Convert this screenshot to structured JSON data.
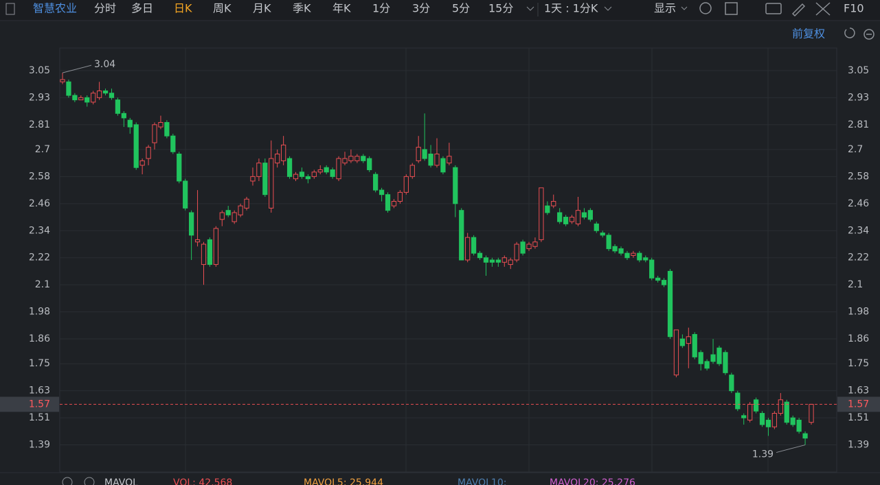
{
  "toolbar": {
    "stock": "智慧农业",
    "tabs": [
      "分时",
      "多日",
      "日K",
      "周K",
      "月K",
      "季K",
      "年K",
      "1分",
      "3分",
      "5分",
      "15分"
    ],
    "active_tab": "日K",
    "period": "1天 : 1分K",
    "display": "显示",
    "f10": "F10"
  },
  "adjust": "前复权",
  "chart_data": {
    "type": "candlestick",
    "ylim": [
      1.27,
      3.15
    ],
    "yticks": [
      3.05,
      2.93,
      2.81,
      2.7,
      2.58,
      2.46,
      2.34,
      2.22,
      2.1,
      1.98,
      1.86,
      1.75,
      1.63,
      1.51,
      1.39
    ],
    "grid": true,
    "up_color": "#ec4f53",
    "down_color": "#21c45e",
    "open": [
      3.0,
      3.0,
      2.94,
      2.92,
      2.93,
      2.91,
      2.93,
      2.96,
      2.95,
      2.92,
      2.86,
      2.83,
      2.81,
      2.63,
      2.66,
      2.73,
      2.8,
      2.82,
      2.76,
      2.68,
      2.56,
      2.42,
      2.29,
      2.19,
      2.3,
      2.19,
      2.39,
      2.43,
      2.38,
      2.41,
      2.44,
      2.56,
      2.58,
      2.64,
      2.44,
      2.64,
      2.65,
      2.66,
      2.57,
      2.6,
      2.58,
      2.58,
      2.6,
      2.62,
      2.61,
      2.57,
      2.64,
      2.65,
      2.65,
      2.67,
      2.66,
      2.59,
      2.52,
      2.5,
      2.45,
      2.47,
      2.51,
      2.58,
      2.65,
      2.7,
      2.68,
      2.63,
      2.66,
      2.64,
      2.62,
      2.43,
      2.21,
      2.31,
      2.24,
      2.22,
      2.21,
      2.21,
      2.2,
      2.19,
      2.21,
      2.29,
      2.26,
      2.27,
      2.3,
      2.45,
      2.45,
      2.42,
      2.4,
      2.38,
      2.37,
      2.42,
      2.43,
      2.37,
      2.33,
      2.32,
      2.27,
      2.26,
      2.24,
      2.23,
      2.24,
      2.22,
      2.21,
      2.13,
      2.12,
      2.16,
      1.7,
      1.86,
      1.84,
      1.88,
      1.8,
      1.76,
      1.79,
      1.82,
      1.8,
      1.7,
      1.62,
      1.52,
      1.5,
      1.59,
      1.53,
      1.5,
      1.47,
      1.53,
      1.58,
      1.51,
      1.5,
      1.44,
      1.49
    ],
    "high": [
      3.04,
      3.01,
      2.95,
      2.94,
      2.94,
      2.96,
      3.0,
      2.97,
      2.97,
      2.93,
      2.87,
      2.84,
      2.82,
      2.66,
      2.72,
      2.82,
      2.85,
      2.83,
      2.77,
      2.69,
      2.57,
      2.43,
      2.52,
      2.29,
      2.31,
      2.36,
      2.43,
      2.45,
      2.43,
      2.46,
      2.49,
      2.62,
      2.66,
      2.66,
      2.74,
      2.7,
      2.76,
      2.67,
      2.6,
      2.62,
      2.59,
      2.61,
      2.63,
      2.63,
      2.62,
      2.67,
      2.69,
      2.7,
      2.68,
      2.68,
      2.67,
      2.6,
      2.53,
      2.51,
      2.48,
      2.52,
      2.59,
      2.64,
      2.76,
      2.86,
      2.72,
      2.75,
      2.67,
      2.73,
      2.63,
      2.44,
      2.33,
      2.32,
      2.25,
      2.23,
      2.22,
      2.22,
      2.23,
      2.22,
      2.29,
      2.3,
      2.29,
      2.31,
      2.53,
      2.47,
      2.5,
      2.44,
      2.41,
      2.41,
      2.49,
      2.44,
      2.44,
      2.38,
      2.34,
      2.33,
      2.28,
      2.27,
      2.25,
      2.25,
      2.25,
      2.23,
      2.22,
      2.14,
      2.13,
      2.17,
      1.9,
      1.88,
      1.91,
      1.89,
      1.81,
      1.77,
      1.86,
      1.83,
      1.81,
      1.71,
      1.63,
      1.53,
      1.58,
      1.6,
      1.54,
      1.51,
      1.54,
      1.62,
      1.59,
      1.52,
      1.51,
      1.45,
      1.57
    ],
    "low": [
      2.99,
      2.93,
      2.91,
      2.92,
      2.89,
      2.9,
      2.92,
      2.94,
      2.92,
      2.85,
      2.8,
      2.77,
      2.61,
      2.59,
      2.63,
      2.7,
      2.79,
      2.75,
      2.68,
      2.55,
      2.43,
      2.21,
      2.27,
      2.1,
      2.18,
      2.18,
      2.36,
      2.4,
      2.37,
      2.4,
      2.43,
      2.54,
      2.56,
      2.49,
      2.42,
      2.62,
      2.63,
      2.57,
      2.56,
      2.57,
      2.55,
      2.57,
      2.59,
      2.59,
      2.57,
      2.56,
      2.63,
      2.64,
      2.64,
      2.64,
      2.6,
      2.51,
      2.47,
      2.42,
      2.44,
      2.46,
      2.5,
      2.57,
      2.64,
      2.65,
      2.62,
      2.62,
      2.59,
      2.63,
      2.4,
      2.21,
      2.2,
      2.23,
      2.21,
      2.14,
      2.18,
      2.18,
      2.18,
      2.17,
      2.2,
      2.23,
      2.25,
      2.26,
      2.29,
      2.41,
      2.44,
      2.37,
      2.36,
      2.37,
      2.36,
      2.39,
      2.38,
      2.33,
      2.31,
      2.25,
      2.24,
      2.23,
      2.21,
      2.22,
      2.2,
      2.2,
      2.12,
      2.11,
      2.09,
      1.86,
      1.69,
      1.82,
      1.73,
      1.77,
      1.72,
      1.72,
      1.75,
      1.74,
      1.7,
      1.62,
      1.54,
      1.48,
      1.49,
      1.53,
      1.47,
      1.43,
      1.46,
      1.52,
      1.48,
      1.47,
      1.44,
      1.39,
      1.48
    ],
    "close": [
      3.01,
      2.94,
      2.92,
      2.93,
      2.91,
      2.95,
      2.96,
      2.95,
      2.93,
      2.86,
      2.84,
      2.8,
      2.62,
      2.65,
      2.71,
      2.81,
      2.82,
      2.76,
      2.69,
      2.56,
      2.44,
      2.32,
      2.3,
      2.28,
      2.19,
      2.35,
      2.42,
      2.41,
      2.42,
      2.45,
      2.48,
      2.58,
      2.64,
      2.5,
      2.66,
      2.68,
      2.72,
      2.58,
      2.59,
      2.58,
      2.57,
      2.6,
      2.61,
      2.6,
      2.58,
      2.66,
      2.66,
      2.67,
      2.67,
      2.65,
      2.61,
      2.52,
      2.5,
      2.43,
      2.47,
      2.51,
      2.58,
      2.63,
      2.71,
      2.66,
      2.63,
      2.68,
      2.6,
      2.67,
      2.46,
      2.21,
      2.31,
      2.24,
      2.22,
      2.2,
      2.2,
      2.2,
      2.22,
      2.21,
      2.28,
      2.24,
      2.28,
      2.29,
      2.53,
      2.42,
      2.47,
      2.38,
      2.37,
      2.4,
      2.43,
      2.4,
      2.39,
      2.34,
      2.32,
      2.26,
      2.25,
      2.24,
      2.22,
      2.24,
      2.21,
      2.21,
      2.13,
      2.12,
      2.1,
      1.87,
      1.9,
      1.83,
      1.87,
      1.78,
      1.75,
      1.73,
      1.76,
      1.75,
      1.71,
      1.63,
      1.55,
      1.51,
      1.57,
      1.54,
      1.48,
      1.47,
      1.53,
      1.59,
      1.49,
      1.48,
      1.45,
      1.42,
      1.57
    ],
    "last_price": 1.57,
    "max_annotation": 3.04,
    "min_annotation": 1.39
  },
  "indicator": {
    "name": "MAVOL",
    "vol": "VOL: 42,568",
    "mavol5": "MAVOL5: 25,944",
    "mavol10": "MAVOL10:",
    "mavol20": "MAVOL20: 25,276"
  }
}
